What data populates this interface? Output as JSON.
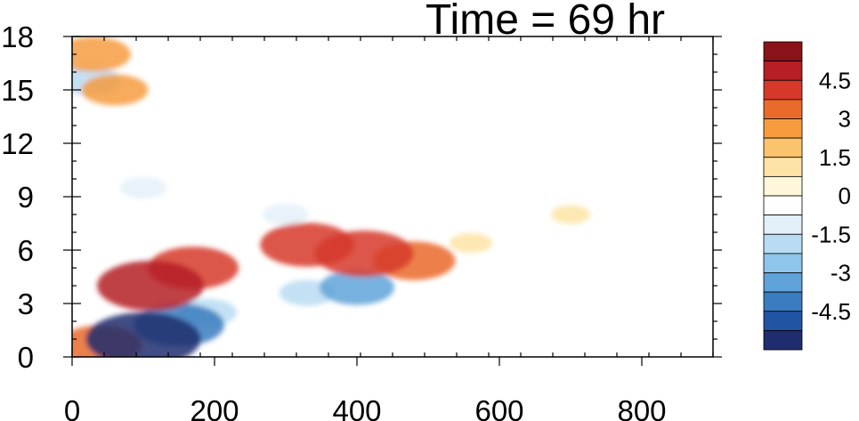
{
  "chart_data": {
    "type": "heatmap",
    "title": "Time = 69 hr",
    "xlabel": "",
    "ylabel": "",
    "xlim": [
      0,
      900
    ],
    "ylim": [
      0,
      18
    ],
    "x_ticks": [
      "0",
      "200",
      "400",
      "600",
      "800"
    ],
    "y_ticks": [
      "0",
      "3",
      "6",
      "9",
      "12",
      "15",
      "18"
    ],
    "grid": false,
    "legend": "colorbar-right",
    "colorbar": {
      "levels": [
        -5.25,
        -4.5,
        -3.75,
        -3,
        -2.25,
        -1.5,
        -0.75,
        0,
        0.75,
        1.5,
        2.25,
        3,
        3.75,
        4.5,
        5.25
      ],
      "labels": [
        "-4.5",
        "-3",
        "-1.5",
        "0",
        "1.5",
        "3",
        "4.5"
      ],
      "colors": [
        "#1f2d6e",
        "#2154a3",
        "#3a7cc0",
        "#5fa3d9",
        "#8dc6ea",
        "#b9dcf2",
        "#e3f0f9",
        "#ffffff",
        "#fff7d9",
        "#fde4a6",
        "#fbc46c",
        "#f69c3e",
        "#ea6a2b",
        "#d6392a",
        "#b51f25",
        "#8a1219"
      ]
    },
    "features": [
      {
        "x": 100,
        "y": 1.0,
        "value": -5.5
      },
      {
        "x": 150,
        "y": 1.8,
        "value": -4.0
      },
      {
        "x": 190,
        "y": 2.5,
        "value": -2.0
      },
      {
        "x": 400,
        "y": 3.9,
        "value": -3.0
      },
      {
        "x": 330,
        "y": 3.6,
        "value": -1.8
      },
      {
        "x": 110,
        "y": 4.0,
        "value": 5.0
      },
      {
        "x": 170,
        "y": 5.0,
        "value": 4.0
      },
      {
        "x": 330,
        "y": 6.3,
        "value": 4.2
      },
      {
        "x": 410,
        "y": 5.8,
        "value": 4.5
      },
      {
        "x": 480,
        "y": 5.4,
        "value": 3.5
      },
      {
        "x": 560,
        "y": 6.4,
        "value": 1.0
      },
      {
        "x": 700,
        "y": 8.0,
        "value": 0.8
      },
      {
        "x": 40,
        "y": 0.7,
        "value": 3.5
      },
      {
        "x": 30,
        "y": 17.0,
        "value": 3.0
      },
      {
        "x": 25,
        "y": 15.5,
        "value": -2.2
      },
      {
        "x": 60,
        "y": 15.0,
        "value": 2.5
      },
      {
        "x": 100,
        "y": 9.5,
        "value": -1.2
      },
      {
        "x": 300,
        "y": 8.0,
        "value": -1.2
      }
    ]
  }
}
